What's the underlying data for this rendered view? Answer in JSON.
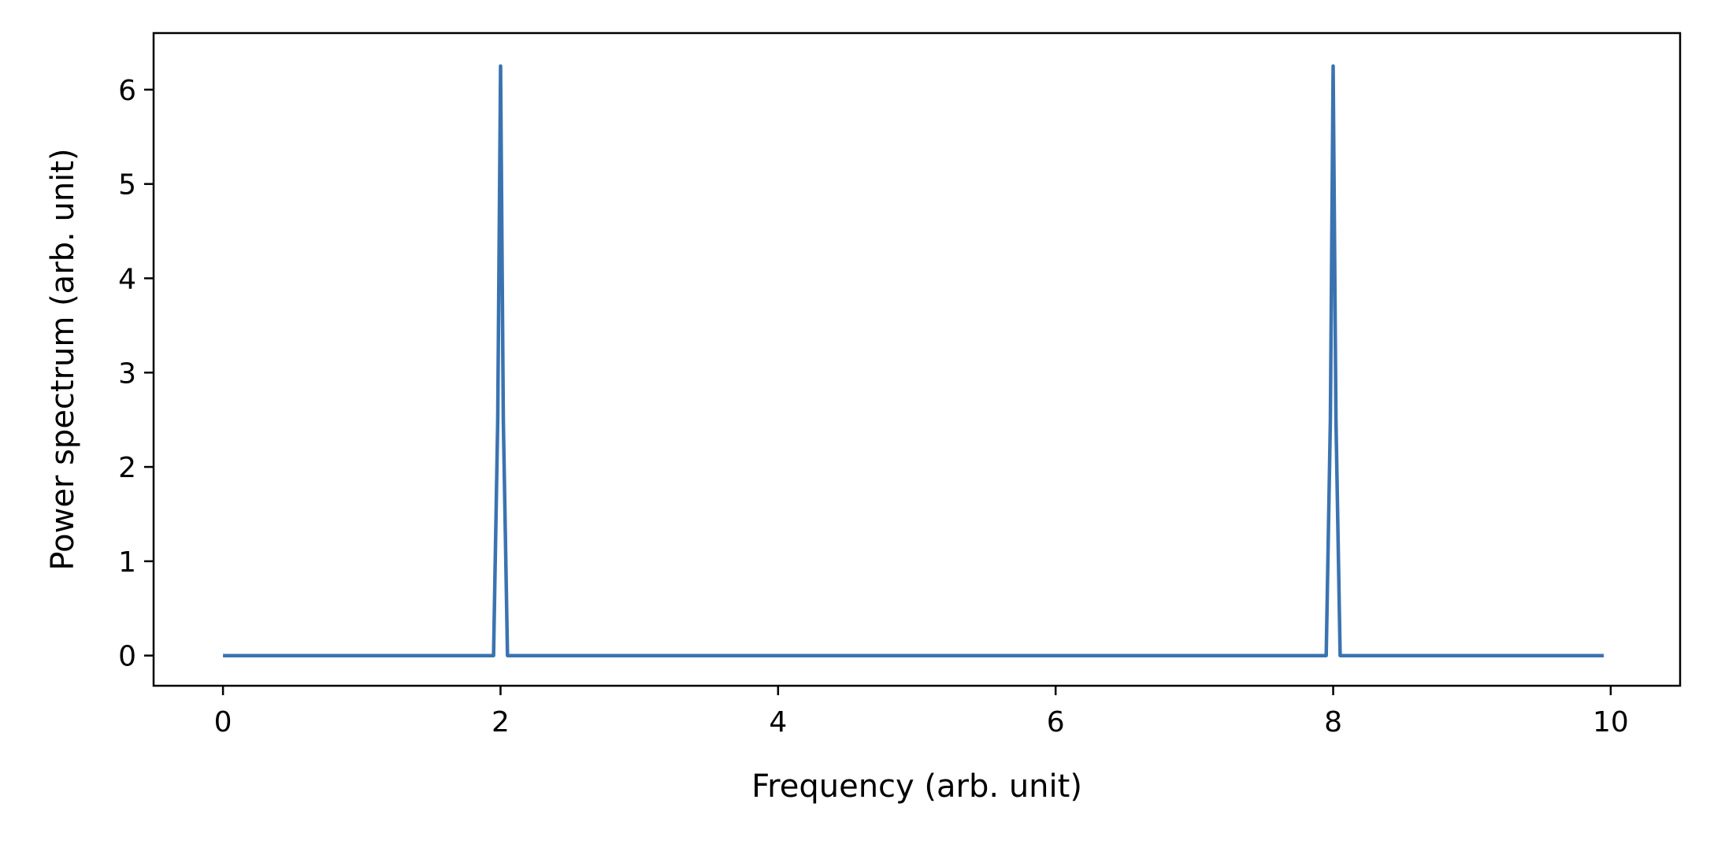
{
  "chart_data": {
    "type": "line",
    "xlabel": "Frequency (arb. unit)",
    "ylabel": "Power spectrum (arb. unit)",
    "xlim": [
      -0.5,
      10.5
    ],
    "ylim": [
      -0.32,
      6.6
    ],
    "x_ticks": [
      0,
      2,
      4,
      6,
      8,
      10
    ],
    "y_ticks": [
      0,
      1,
      2,
      3,
      4,
      5,
      6
    ],
    "grid": false,
    "legend": "none",
    "line_color": "#3b73b0",
    "series": [
      {
        "x": [
          0,
          1.95,
          1.98,
          2.0,
          2.02,
          2.05,
          7.95,
          7.98,
          8.0,
          8.02,
          8.05,
          9.95
        ],
        "y": [
          0,
          0,
          2.5,
          6.25,
          2.5,
          0,
          0,
          2.5,
          6.25,
          2.5,
          0,
          0
        ]
      }
    ]
  }
}
